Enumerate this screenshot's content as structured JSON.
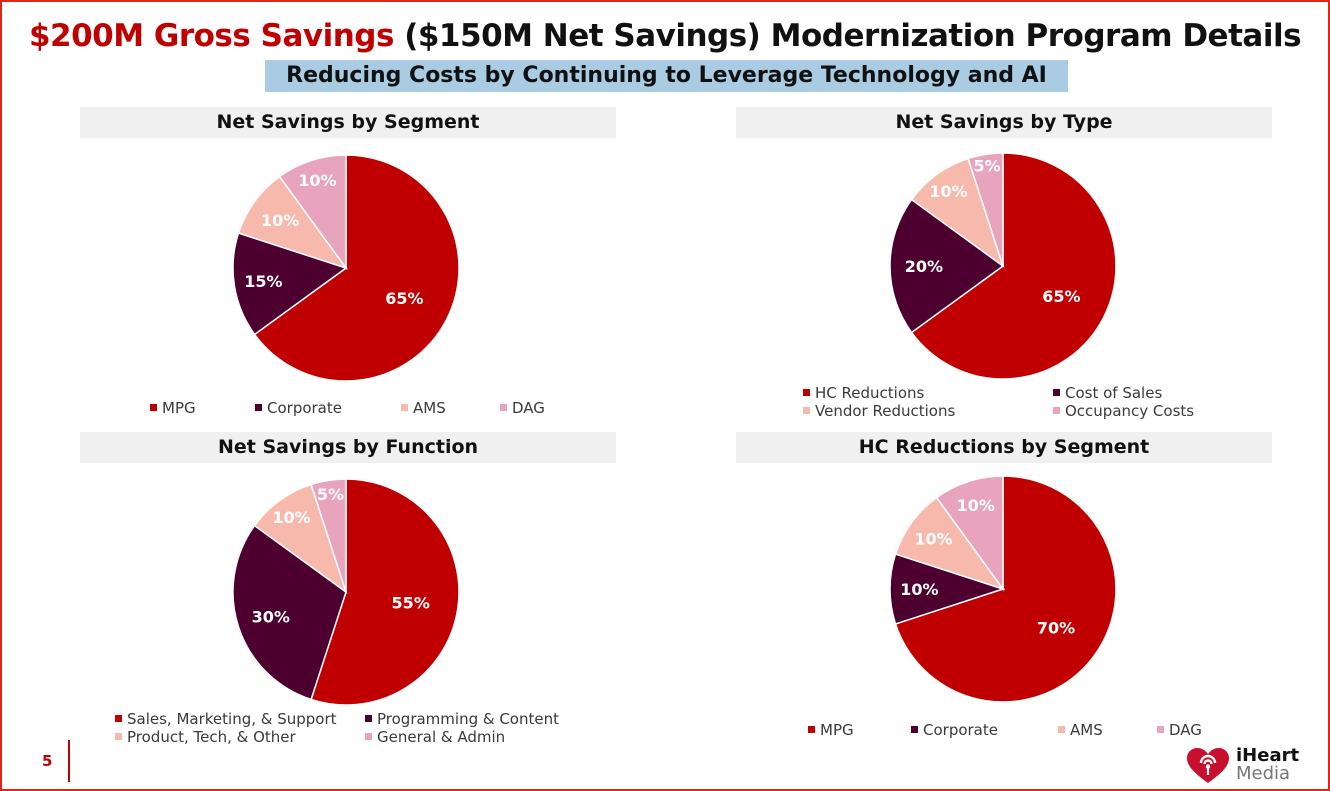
{
  "title": {
    "red_part": "$200M Gross Savings",
    "rest": " ($150M Net Savings) Modernization Program Details"
  },
  "subtitle": "Reducing Costs by Continuing to Leverage Technology and AI",
  "page_number": "5",
  "logo": {
    "line1": "iHeart",
    "line2": "Media"
  },
  "colors": {
    "dark_red": "#c00000",
    "maroon": "#4d0030",
    "salmon": "#f8b9ad",
    "pink": "#e8a3bd",
    "accent": "#e2231a"
  },
  "chart_data": [
    {
      "type": "pie",
      "title": "Net Savings by Segment",
      "categories": [
        "MPG",
        "Corporate",
        "AMS",
        "DAG"
      ],
      "values": [
        65,
        15,
        10,
        10
      ],
      "labels": [
        "65%",
        "15%",
        "10%",
        "10%"
      ],
      "colors": [
        "#c00000",
        "#4d0030",
        "#f8b9ad",
        "#e8a3bd"
      ],
      "legend": "bottom"
    },
    {
      "type": "pie",
      "title": "Net Savings by Type",
      "categories": [
        "HC Reductions",
        "Cost of Sales",
        "Vendor Reductions",
        "Occupancy Costs"
      ],
      "values": [
        65,
        20,
        10,
        5
      ],
      "labels": [
        "65%",
        "20%",
        "10%",
        "5%"
      ],
      "colors": [
        "#c00000",
        "#4d0030",
        "#f8b9ad",
        "#e8a3bd"
      ],
      "legend": "bottom"
    },
    {
      "type": "pie",
      "title": "Net Savings by Function",
      "categories": [
        "Sales, Marketing, & Support",
        "Programming & Content",
        "Product, Tech, & Other",
        "General & Admin"
      ],
      "values": [
        55,
        30,
        10,
        5
      ],
      "labels": [
        "55%",
        "30%",
        "10%",
        "5%"
      ],
      "colors": [
        "#c00000",
        "#4d0030",
        "#f8b9ad",
        "#e8a3bd"
      ],
      "legend": "bottom"
    },
    {
      "type": "pie",
      "title": "HC Reductions by Segment",
      "categories": [
        "MPG",
        "Corporate",
        "AMS",
        "DAG"
      ],
      "values": [
        70,
        10,
        10,
        10
      ],
      "labels": [
        "70%",
        "10%",
        "10%",
        "10%"
      ],
      "colors": [
        "#c00000",
        "#4d0030",
        "#f8b9ad",
        "#e8a3bd"
      ],
      "legend": "bottom"
    }
  ]
}
